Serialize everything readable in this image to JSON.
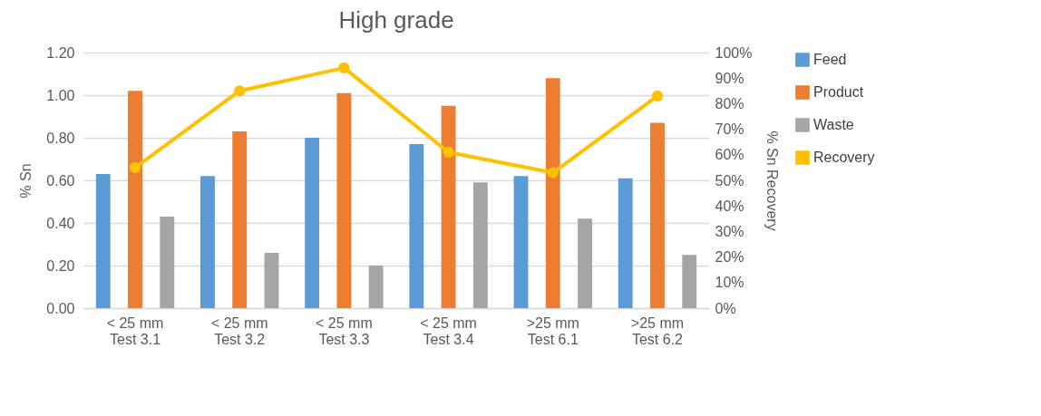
{
  "chart_data": {
    "type": "bar",
    "title": "High grade",
    "ylabel": "% Sn",
    "y2label": "% Sn Recovery",
    "categories": [
      "< 25 mm\nTest 3.1",
      "< 25 mm\nTest 3.2",
      "< 25 mm\nTest 3.3",
      "< 25 mm\nTest 3.4",
      ">25 mm\nTest 6.1",
      ">25 mm\nTest 6.2"
    ],
    "series": [
      {
        "name": "Feed",
        "color": "#5b9bd5",
        "values": [
          0.63,
          0.62,
          0.8,
          0.77,
          0.62,
          0.61
        ]
      },
      {
        "name": "Product",
        "color": "#ed7d31",
        "values": [
          1.02,
          0.83,
          1.01,
          0.95,
          1.08,
          0.87
        ]
      },
      {
        "name": "Waste",
        "color": "#a5a5a5",
        "values": [
          0.43,
          0.26,
          0.2,
          0.59,
          0.42,
          0.25
        ]
      },
      {
        "name": "Recovery",
        "color": "#ffc000",
        "type": "line",
        "axis": "y2",
        "marker": "circle",
        "values": [
          55,
          85,
          94,
          61,
          53,
          83
        ]
      }
    ],
    "ylim": [
      0,
      1.2
    ],
    "yticks": [
      {
        "value": 0,
        "label": "0.00"
      },
      {
        "value": 0.2,
        "label": "0.20"
      },
      {
        "value": 0.4,
        "label": "0.40"
      },
      {
        "value": 0.6,
        "label": "0.60"
      },
      {
        "value": 0.8,
        "label": "0.80"
      },
      {
        "value": 1,
        "label": "1.00"
      },
      {
        "value": 1.2,
        "label": "1.20"
      }
    ],
    "y2lim": [
      0,
      100
    ],
    "y2ticks": [
      {
        "value": 0,
        "label": "0%"
      },
      {
        "value": 10,
        "label": "10%"
      },
      {
        "value": 20,
        "label": "20%"
      },
      {
        "value": 30,
        "label": "30%"
      },
      {
        "value": 40,
        "label": "40%"
      },
      {
        "value": 50,
        "label": "50%"
      },
      {
        "value": 60,
        "label": "60%"
      },
      {
        "value": 70,
        "label": "70%"
      },
      {
        "value": 80,
        "label": "80%"
      },
      {
        "value": 90,
        "label": "90%"
      },
      {
        "value": 100,
        "label": "100%"
      }
    ],
    "grid": "y",
    "legend": "right"
  }
}
